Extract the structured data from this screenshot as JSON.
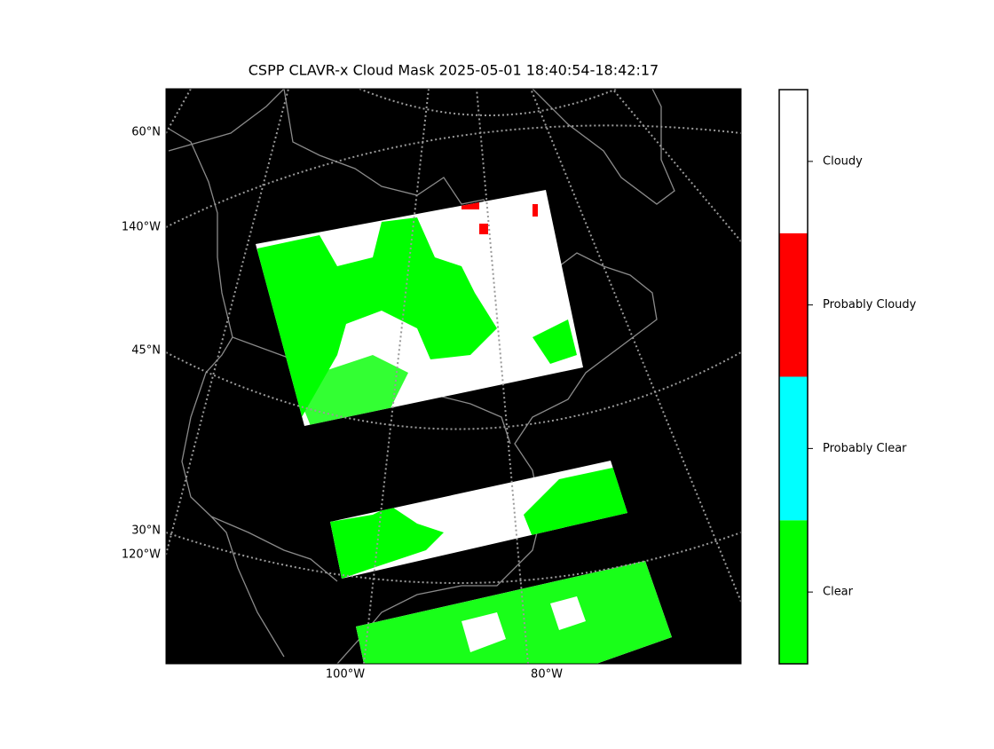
{
  "title": "CSPP CLAVR-x Cloud Mask 2025-05-01 18:40:54-18:42:17",
  "map": {
    "lat_labels": [
      "60°N",
      "45°N",
      "30°N"
    ],
    "lon_labels_left": [
      "140°W",
      "120°W"
    ],
    "lon_labels_bottom": [
      "100°W",
      "80°W"
    ]
  },
  "colorbar": {
    "classes": [
      {
        "label": "Clear",
        "color": "#00ff00"
      },
      {
        "label": "Probably Clear",
        "color": "#00ffff"
      },
      {
        "label": "Probably Cloudy",
        "color": "#ff0000"
      },
      {
        "label": "Cloudy",
        "color": "#ffffff"
      }
    ]
  }
}
